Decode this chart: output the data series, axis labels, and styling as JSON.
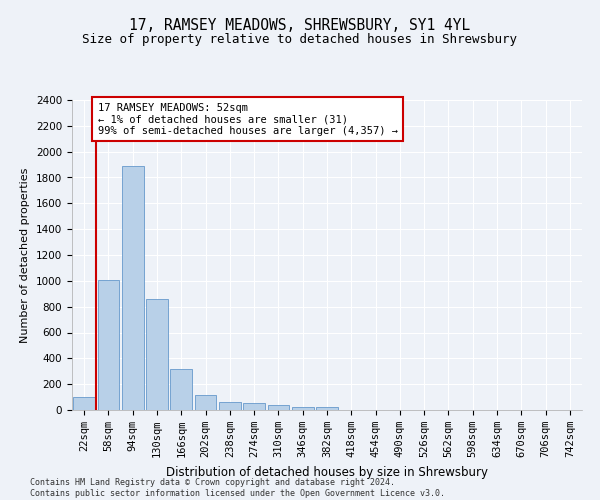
{
  "title": "17, RAMSEY MEADOWS, SHREWSBURY, SY1 4YL",
  "subtitle": "Size of property relative to detached houses in Shrewsbury",
  "xlabel": "Distribution of detached houses by size in Shrewsbury",
  "ylabel": "Number of detached properties",
  "bar_labels": [
    "22sqm",
    "58sqm",
    "94sqm",
    "130sqm",
    "166sqm",
    "202sqm",
    "238sqm",
    "274sqm",
    "310sqm",
    "346sqm",
    "382sqm",
    "418sqm",
    "454sqm",
    "490sqm",
    "526sqm",
    "562sqm",
    "598sqm",
    "634sqm",
    "670sqm",
    "706sqm",
    "742sqm"
  ],
  "bar_values": [
    100,
    1010,
    1890,
    860,
    315,
    120,
    60,
    55,
    40,
    25,
    20,
    0,
    0,
    0,
    0,
    0,
    0,
    0,
    0,
    0,
    0
  ],
  "bar_color": "#b8d0e8",
  "bar_edge_color": "#6699cc",
  "highlight_color": "#cc0000",
  "ylim": [
    0,
    2400
  ],
  "yticks": [
    0,
    200,
    400,
    600,
    800,
    1000,
    1200,
    1400,
    1600,
    1800,
    2000,
    2200,
    2400
  ],
  "annotation_text": "17 RAMSEY MEADOWS: 52sqm\n← 1% of detached houses are smaller (31)\n99% of semi-detached houses are larger (4,357) →",
  "annotation_box_color": "#cc0000",
  "footer_line1": "Contains HM Land Registry data © Crown copyright and database right 2024.",
  "footer_line2": "Contains public sector information licensed under the Open Government Licence v3.0.",
  "bg_color": "#eef2f8",
  "grid_color": "#ffffff",
  "title_fontsize": 10.5,
  "subtitle_fontsize": 9,
  "xlabel_fontsize": 8.5,
  "ylabel_fontsize": 8,
  "tick_fontsize": 7.5,
  "annotation_fontsize": 7.5,
  "footer_fontsize": 6
}
